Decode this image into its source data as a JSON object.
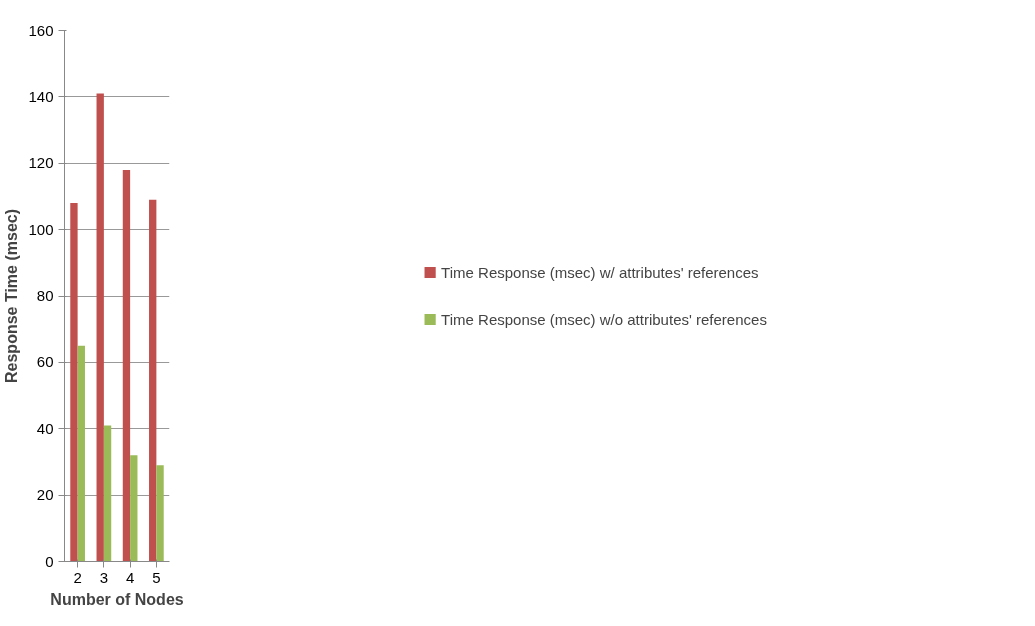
{
  "chart_data": {
    "type": "bar",
    "xlabel": "Number of Nodes",
    "ylabel": "Response Time (msec)",
    "categories": [
      "2",
      "3",
      "4",
      "5"
    ],
    "series": [
      {
        "name": "Time Response (msec) w/ attributes' references",
        "color": "#c0504d",
        "values": [
          108,
          141,
          118,
          109
        ]
      },
      {
        "name": "Time Response (msec) w/o attributes' references",
        "color": "#9bbb59",
        "values": [
          65,
          41,
          32,
          29
        ]
      }
    ],
    "ylim": [
      0,
      160
    ],
    "yticks": [
      0,
      20,
      40,
      60,
      80,
      100,
      120,
      140,
      160
    ],
    "grid": "y",
    "legend": "right"
  }
}
